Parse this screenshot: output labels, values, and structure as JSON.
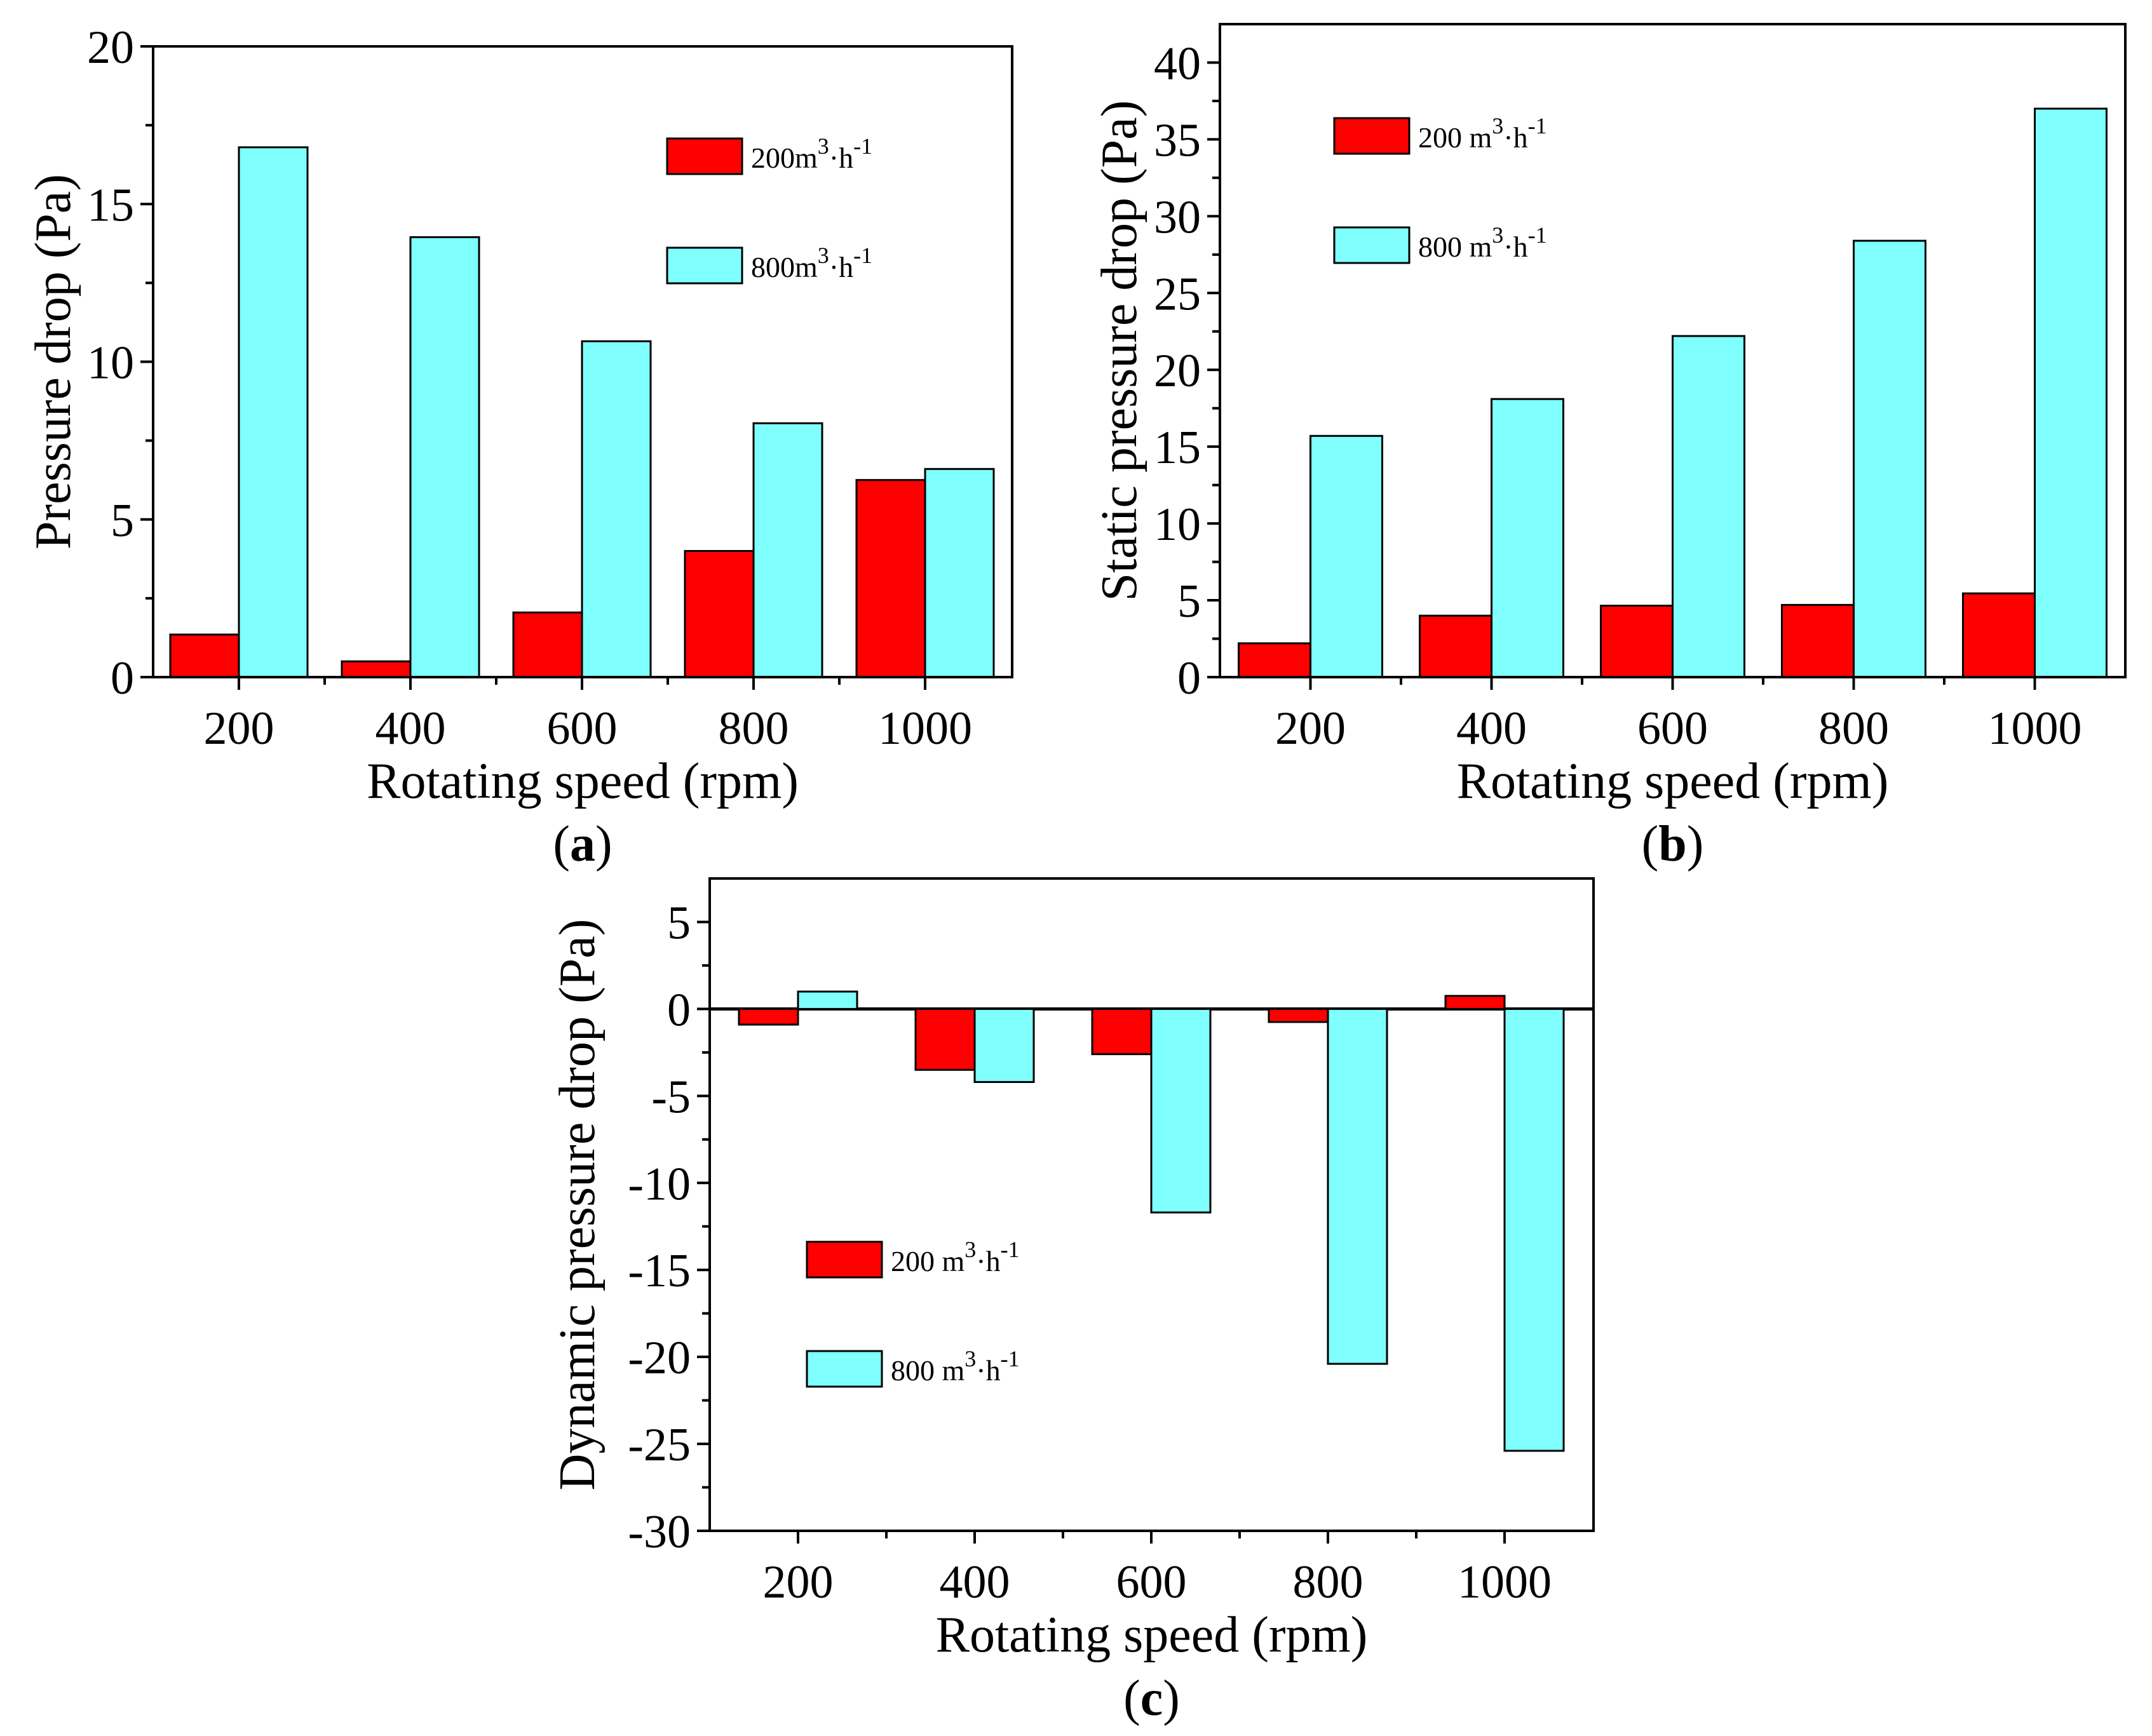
{
  "colors": {
    "series_200": "#ff0000",
    "series_800": "#80ffff"
  },
  "chart_data": [
    {
      "id": "a",
      "type": "bar",
      "panel_label": "a",
      "title": "",
      "xlabel": "Rotating speed (rpm)",
      "ylabel": "Pressure drop (Pa)",
      "categories": [
        "200",
        "400",
        "600",
        "800",
        "1000"
      ],
      "series": [
        {
          "name": "200m3·h-1",
          "legend_base": "200m",
          "legend_sup1": "3",
          "legend_mid": "·h",
          "legend_sup2": "-1",
          "values": [
            1.35,
            0.5,
            2.05,
            4.0,
            6.25
          ]
        },
        {
          "name": "800m3·h-1",
          "legend_base": "800m",
          "legend_sup1": "3",
          "legend_mid": "·h",
          "legend_sup2": "-1",
          "values": [
            16.8,
            13.95,
            10.65,
            8.05,
            6.6
          ]
        }
      ],
      "ylim": [
        0,
        20
      ],
      "yticks": [
        "0",
        "5",
        "10",
        "15",
        "20"
      ],
      "legend_position": "top-right"
    },
    {
      "id": "b",
      "type": "bar",
      "panel_label": "b",
      "title": "",
      "xlabel": "Rotating speed (rpm)",
      "ylabel": "Static pressure drop (Pa)",
      "categories": [
        "200",
        "400",
        "600",
        "800",
        "1000"
      ],
      "series": [
        {
          "name": "200 m3·h-1",
          "legend_base": "200 m",
          "legend_sup1": "3",
          "legend_mid": "·h",
          "legend_sup2": "-1",
          "values": [
            2.2,
            4.0,
            4.65,
            4.7,
            5.45
          ]
        },
        {
          "name": "800 m3·h-1",
          "legend_base": "800 m",
          "legend_sup1": "3",
          "legend_mid": "·h",
          "legend_sup2": "-1",
          "values": [
            15.7,
            18.1,
            22.2,
            28.4,
            37.0
          ]
        }
      ],
      "ylim": [
        0,
        42.5
      ],
      "yticks": [
        "0",
        "5",
        "10",
        "15",
        "20",
        "25",
        "30",
        "35",
        "40"
      ],
      "legend_position": "top-left"
    },
    {
      "id": "c",
      "type": "bar",
      "panel_label": "c",
      "title": "",
      "xlabel": "Rotating speed (rpm)",
      "ylabel": "Dynamic pressure drop (Pa)",
      "categories": [
        "200",
        "400",
        "600",
        "800",
        "1000"
      ],
      "series": [
        {
          "name": "200 m3·h-1",
          "legend_base": "200 m",
          "legend_sup1": "3",
          "legend_mid": "·h",
          "legend_sup2": "-1",
          "values": [
            -0.9,
            -3.5,
            -2.6,
            -0.75,
            0.75
          ]
        },
        {
          "name": "800 m3·h-1",
          "legend_base": "800 m",
          "legend_sup1": "3",
          "legend_mid": "·h",
          "legend_sup2": "-1",
          "values": [
            1.0,
            -4.2,
            -11.7,
            -20.4,
            -25.4
          ]
        }
      ],
      "ylim": [
        -30,
        7.5
      ],
      "yticks": [
        "-30",
        "-25",
        "-20",
        "-15",
        "-10",
        "-5",
        "0",
        "5"
      ],
      "legend_position": "bottom-left"
    }
  ]
}
